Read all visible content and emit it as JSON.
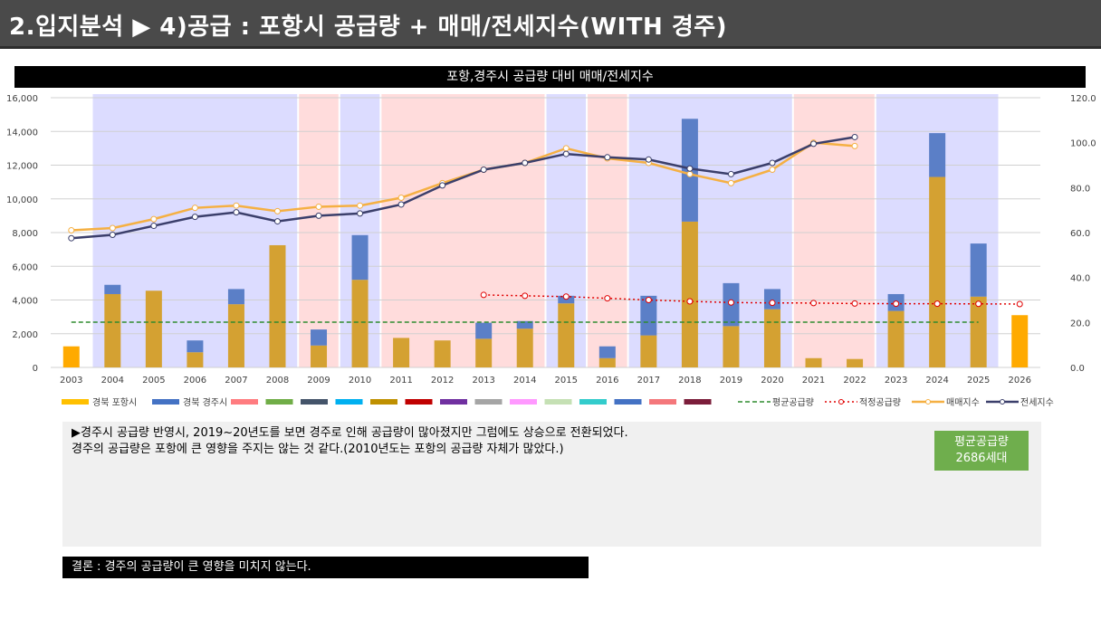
{
  "page_title": "2.입지분석 ▶ 4)공급 : 포항시 공급량 + 매매/전세지수(WITH 경주)",
  "chart_data": {
    "type": "bar",
    "title": "포항,경주시 공급량 대비 매매/전세지수",
    "categories": [
      "2003",
      "2004",
      "2005",
      "2006",
      "2007",
      "2008",
      "2009",
      "2010",
      "2011",
      "2012",
      "2013",
      "2014",
      "2015",
      "2016",
      "2017",
      "2018",
      "2019",
      "2020",
      "2021",
      "2022",
      "2023",
      "2024",
      "2025",
      "2026"
    ],
    "y_left": {
      "min": 0,
      "max": 16000,
      "ticks": [
        "0",
        "2,000",
        "4,000",
        "6,000",
        "8,000",
        "10,000",
        "12,000",
        "14,000",
        "16,000"
      ]
    },
    "y_right": {
      "min": 0,
      "max": 120,
      "ticks": [
        "0.0",
        "20.0",
        "40.0",
        "60.0",
        "80.0",
        "100.0",
        "120.0"
      ]
    },
    "bar_series": [
      {
        "name": "경북 포항시",
        "color": "#ffc000",
        "stack": "supply",
        "values": [
          1250,
          4350,
          4550,
          900,
          3750,
          7250,
          1300,
          5200,
          1750,
          1600,
          1700,
          2300,
          3800,
          550,
          1900,
          8650,
          2450,
          3450,
          550,
          500,
          3350,
          11300,
          4200,
          3100
        ]
      },
      {
        "name": "경북 경주시",
        "color": "#4472c4",
        "stack": "supply",
        "values": [
          0,
          550,
          0,
          700,
          900,
          0,
          950,
          2650,
          0,
          0,
          950,
          450,
          450,
          700,
          2350,
          6100,
          2550,
          1200,
          0,
          0,
          1000,
          2600,
          3150,
          0
        ]
      }
    ],
    "empty_legend_swatches": [
      "#ff7c80",
      "#70ad47",
      "#44546a",
      "#00b0f0",
      "#bf9000",
      "#c00000",
      "#7030a0",
      "#a5a5a5",
      "#ff99ff",
      "#c5e0b4",
      "#33cccc",
      "#4472c4",
      "#f4777b",
      "#7b1d3a"
    ],
    "line_series": [
      {
        "name": "평균공급량",
        "axis": "left",
        "style": "dashed",
        "color": "#2e8b2e",
        "value": 2686,
        "from": "2003",
        "to": "2025"
      },
      {
        "name": "적정공급량",
        "axis": "left",
        "style": "dotted",
        "color": "#e00000",
        "values": [
          null,
          null,
          null,
          null,
          null,
          null,
          null,
          null,
          null,
          null,
          4300,
          4250,
          4200,
          4100,
          4000,
          3920,
          3850,
          3830,
          3820,
          3790,
          3780,
          3780,
          3770,
          3760
        ]
      },
      {
        "name": "매매지수",
        "axis": "right",
        "style": "solid",
        "color": "#f5b043",
        "values": [
          61,
          62,
          66,
          71,
          72,
          69.5,
          71.5,
          72,
          75.5,
          82,
          88,
          91,
          97.5,
          93,
          91,
          86,
          82,
          88,
          100,
          98.5,
          null,
          null,
          null,
          null
        ]
      },
      {
        "name": "전세지수",
        "axis": "right",
        "style": "solid",
        "color": "#3b3f6b",
        "values": [
          57.5,
          59,
          63,
          67,
          69,
          65,
          67.5,
          68.5,
          72.5,
          81,
          88,
          91,
          95,
          93.5,
          92.5,
          88.5,
          86,
          91,
          99.5,
          102.5,
          null,
          null,
          null,
          null
        ]
      }
    ],
    "background_bands": [
      {
        "from": "2004",
        "to": "2008",
        "color": "#dcdcff"
      },
      {
        "from": "2009",
        "to": "2009",
        "color": "#ffdcdc"
      },
      {
        "from": "2010",
        "to": "2010",
        "color": "#dcdcff"
      },
      {
        "from": "2011",
        "to": "2014",
        "color": "#ffdcdc"
      },
      {
        "from": "2015",
        "to": "2015",
        "color": "#dcdcff"
      },
      {
        "from": "2016",
        "to": "2016",
        "color": "#ffdcdc"
      },
      {
        "from": "2017",
        "to": "2020",
        "color": "#dcdcff"
      },
      {
        "from": "2021",
        "to": "2022",
        "color": "#ffdcdc"
      },
      {
        "from": "2023",
        "to": "2025",
        "color": "#dcdcff"
      }
    ],
    "grid": true,
    "legend_position": "bottom"
  },
  "note": {
    "line1": "▶경주시 공급량 반영시, 2019~20년도를 보면 경주로 인해 공급량이 많아졌지만 그럼에도 상승으로 전환되었다.",
    "line2": "경주의 공급량은 포항에 큰 영향을 주지는 않는 것 같다.(2010년도는 포항의 공급량 자체가 많았다.)"
  },
  "badge": {
    "label": "평균공급량",
    "value": "2686세대",
    "color": "#6fae4d"
  },
  "conclusion": "결론 : 경주의 공급량이 큰 영향을 미치지 않는다."
}
